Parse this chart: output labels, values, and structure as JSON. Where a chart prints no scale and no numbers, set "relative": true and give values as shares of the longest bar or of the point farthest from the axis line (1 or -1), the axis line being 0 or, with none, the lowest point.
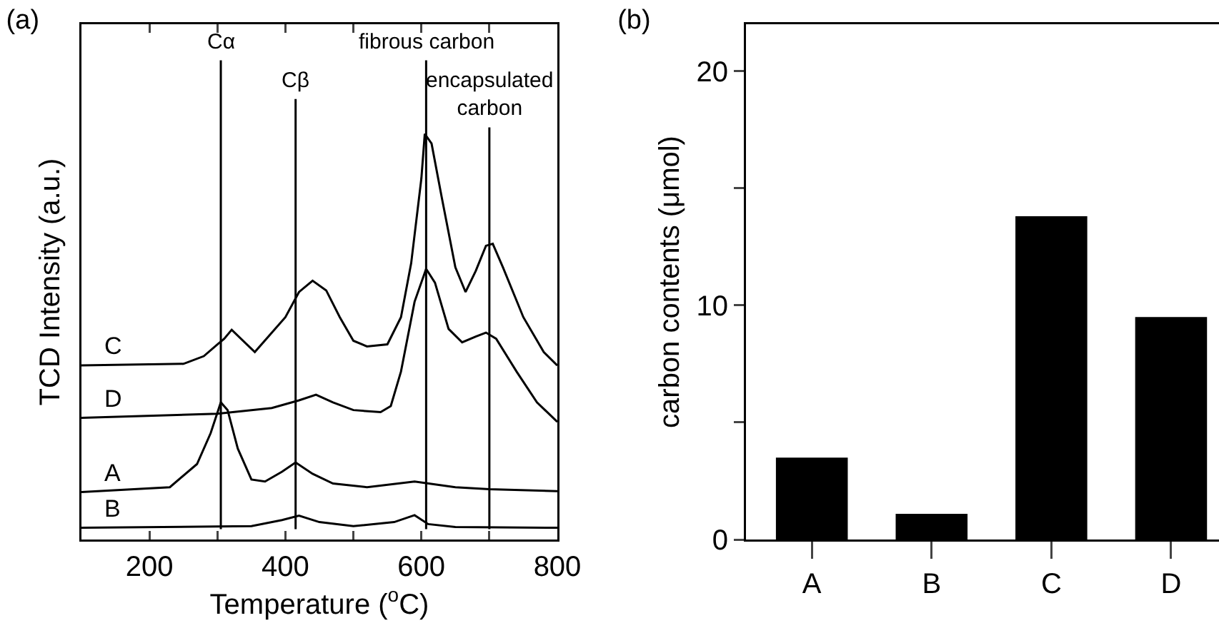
{
  "chart_data": [
    {
      "type": "line",
      "title": "(a)",
      "xlabel": "Temperature ($^{o}$C)",
      "ylabel": "TCD Intensity (a.u.)",
      "relative": true,
      "xlim": [
        100,
        800
      ],
      "xticks": [
        200,
        {
          "value": 300,
          "label": null
        },
        400,
        {
          "value": 500,
          "label": null
        },
        600,
        {
          "value": 700,
          "label": null
        },
        800
      ],
      "tick_labels": "x",
      "series": [
        {
          "name": "C",
          "color": "#000000",
          "x": [
            100,
            250,
            280,
            300,
            310,
            321,
            355,
            400,
            420,
            440,
            460,
            480,
            500,
            520,
            550,
            570,
            585,
            600,
            605,
            615,
            630,
            650,
            665,
            680,
            695,
            705,
            720,
            750,
            780,
            800
          ],
          "values": [
            0.429,
            0.433,
            0.452,
            0.481,
            0.495,
            0.517,
            0.462,
            0.548,
            0.61,
            0.638,
            0.614,
            0.548,
            0.49,
            0.476,
            0.481,
            0.548,
            0.681,
            0.89,
            1.0,
            0.976,
            0.843,
            0.671,
            0.61,
            0.662,
            0.724,
            0.729,
            0.671,
            0.548,
            0.462,
            0.429
          ]
        },
        {
          "name": "D",
          "color": "#000000",
          "x": [
            100,
            300,
            380,
            420,
            445,
            470,
            500,
            540,
            555,
            570,
            590,
            607,
            620,
            640,
            660,
            680,
            695,
            710,
            740,
            770,
            800
          ],
          "values": [
            0.3,
            0.31,
            0.324,
            0.343,
            0.357,
            0.338,
            0.319,
            0.314,
            0.329,
            0.414,
            0.586,
            0.667,
            0.633,
            0.519,
            0.486,
            0.5,
            0.51,
            0.495,
            0.414,
            0.338,
            0.29
          ]
        },
        {
          "name": "A",
          "color": "#000000",
          "x": [
            100,
            230,
            270,
            290,
            305,
            315,
            330,
            350,
            370,
            395,
            415,
            440,
            470,
            520,
            590,
            650,
            700,
            800
          ],
          "values": [
            0.117,
            0.129,
            0.186,
            0.262,
            0.338,
            0.319,
            0.224,
            0.148,
            0.143,
            0.167,
            0.19,
            0.162,
            0.138,
            0.129,
            0.143,
            0.129,
            0.124,
            0.119
          ]
        },
        {
          "name": "B",
          "color": "#000000",
          "x": [
            100,
            350,
            395,
            420,
            450,
            500,
            560,
            590,
            610,
            650,
            800
          ],
          "values": [
            0.029,
            0.033,
            0.048,
            0.059,
            0.043,
            0.033,
            0.043,
            0.06,
            0.038,
            0.031,
            0.029
          ]
        }
      ],
      "ref_lines": [
        {
          "axis": "x",
          "value": 305,
          "label": "Cα"
        },
        {
          "axis": "x",
          "value": 415,
          "label": "Cβ"
        },
        {
          "axis": "x",
          "value": 607,
          "label": "fibrous carbon"
        },
        {
          "axis": "x",
          "value": 700,
          "label": "encapsulated\ncarbon"
        }
      ]
    },
    {
      "type": "bar",
      "title": "(b)",
      "ylabel": "carbon contents (μmol)",
      "categories": [
        "A",
        "B",
        "C",
        "D"
      ],
      "values": [
        3.5,
        1.1,
        13.8,
        9.5
      ],
      "color": "#000000",
      "ylim": [
        0,
        22
      ],
      "yticks": [
        0,
        {
          "value": 5,
          "label": null
        },
        10,
        {
          "value": 15,
          "label": null
        },
        20
      ]
    }
  ]
}
